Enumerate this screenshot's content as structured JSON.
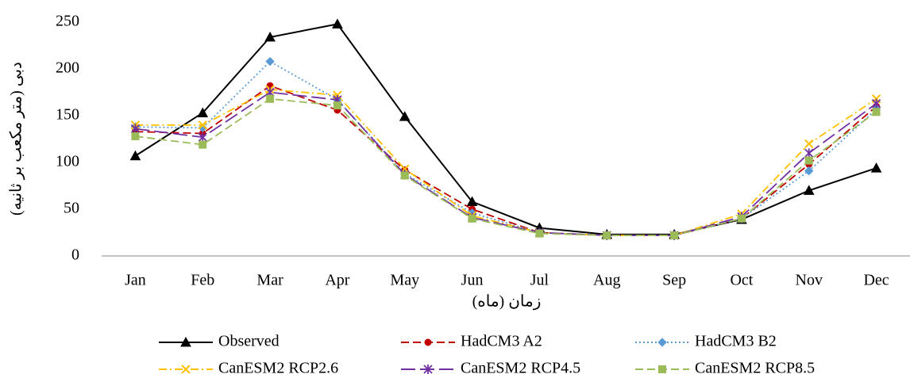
{
  "chart_data": {
    "type": "line",
    "y_label": "دبی (متر مکعب بر ثانیه)",
    "x_label": "زمان (ماه)",
    "categories": [
      "Jan",
      "Feb",
      "Mar",
      "Apr",
      "May",
      "Jun",
      "Jul",
      "Aug",
      "Sep",
      "Oct",
      "Nov",
      "Dec"
    ],
    "series": [
      {
        "name": "Observed",
        "color": "#000000",
        "linestyle": "solid",
        "marker": "triangle",
        "values": [
          107,
          153,
          234,
          248,
          149,
          58,
          30,
          23,
          23,
          39,
          70,
          94
        ]
      },
      {
        "name": "HadCM3 A2",
        "color": "#c00000",
        "linestyle": "dashed",
        "marker": "circle",
        "values": [
          133,
          131,
          182,
          156,
          92,
          50,
          25,
          22,
          22,
          40,
          98,
          160
        ]
      },
      {
        "name": "HadCM3 B2",
        "color": "#5b9bd5",
        "linestyle": "dotted",
        "marker": "diamond",
        "values": [
          138,
          137,
          208,
          167,
          88,
          46,
          25,
          22,
          22,
          40,
          91,
          157
        ]
      },
      {
        "name": "CanESM2 RCP2.6",
        "color": "#ffc000",
        "linestyle": "dashdot",
        "marker": "x",
        "values": [
          140,
          140,
          178,
          172,
          93,
          43,
          25,
          22,
          22,
          45,
          120,
          168
        ]
      },
      {
        "name": "CanESM2 RCP4.5",
        "color": "#7030a0",
        "linestyle": "longdash",
        "marker": "star",
        "values": [
          136,
          127,
          175,
          167,
          87,
          41,
          25,
          22,
          22,
          42,
          110,
          163
        ]
      },
      {
        "name": "CanESM2 RCP8.5",
        "color": "#9bbb59",
        "linestyle": "dashed",
        "marker": "square",
        "values": [
          128,
          119,
          168,
          161,
          86,
          40,
          24,
          22,
          22,
          40,
          102,
          154
        ]
      }
    ],
    "ylim": [
      0,
      250
    ],
    "yticks": [
      0,
      50,
      100,
      150,
      200,
      250
    ],
    "grid": false
  }
}
